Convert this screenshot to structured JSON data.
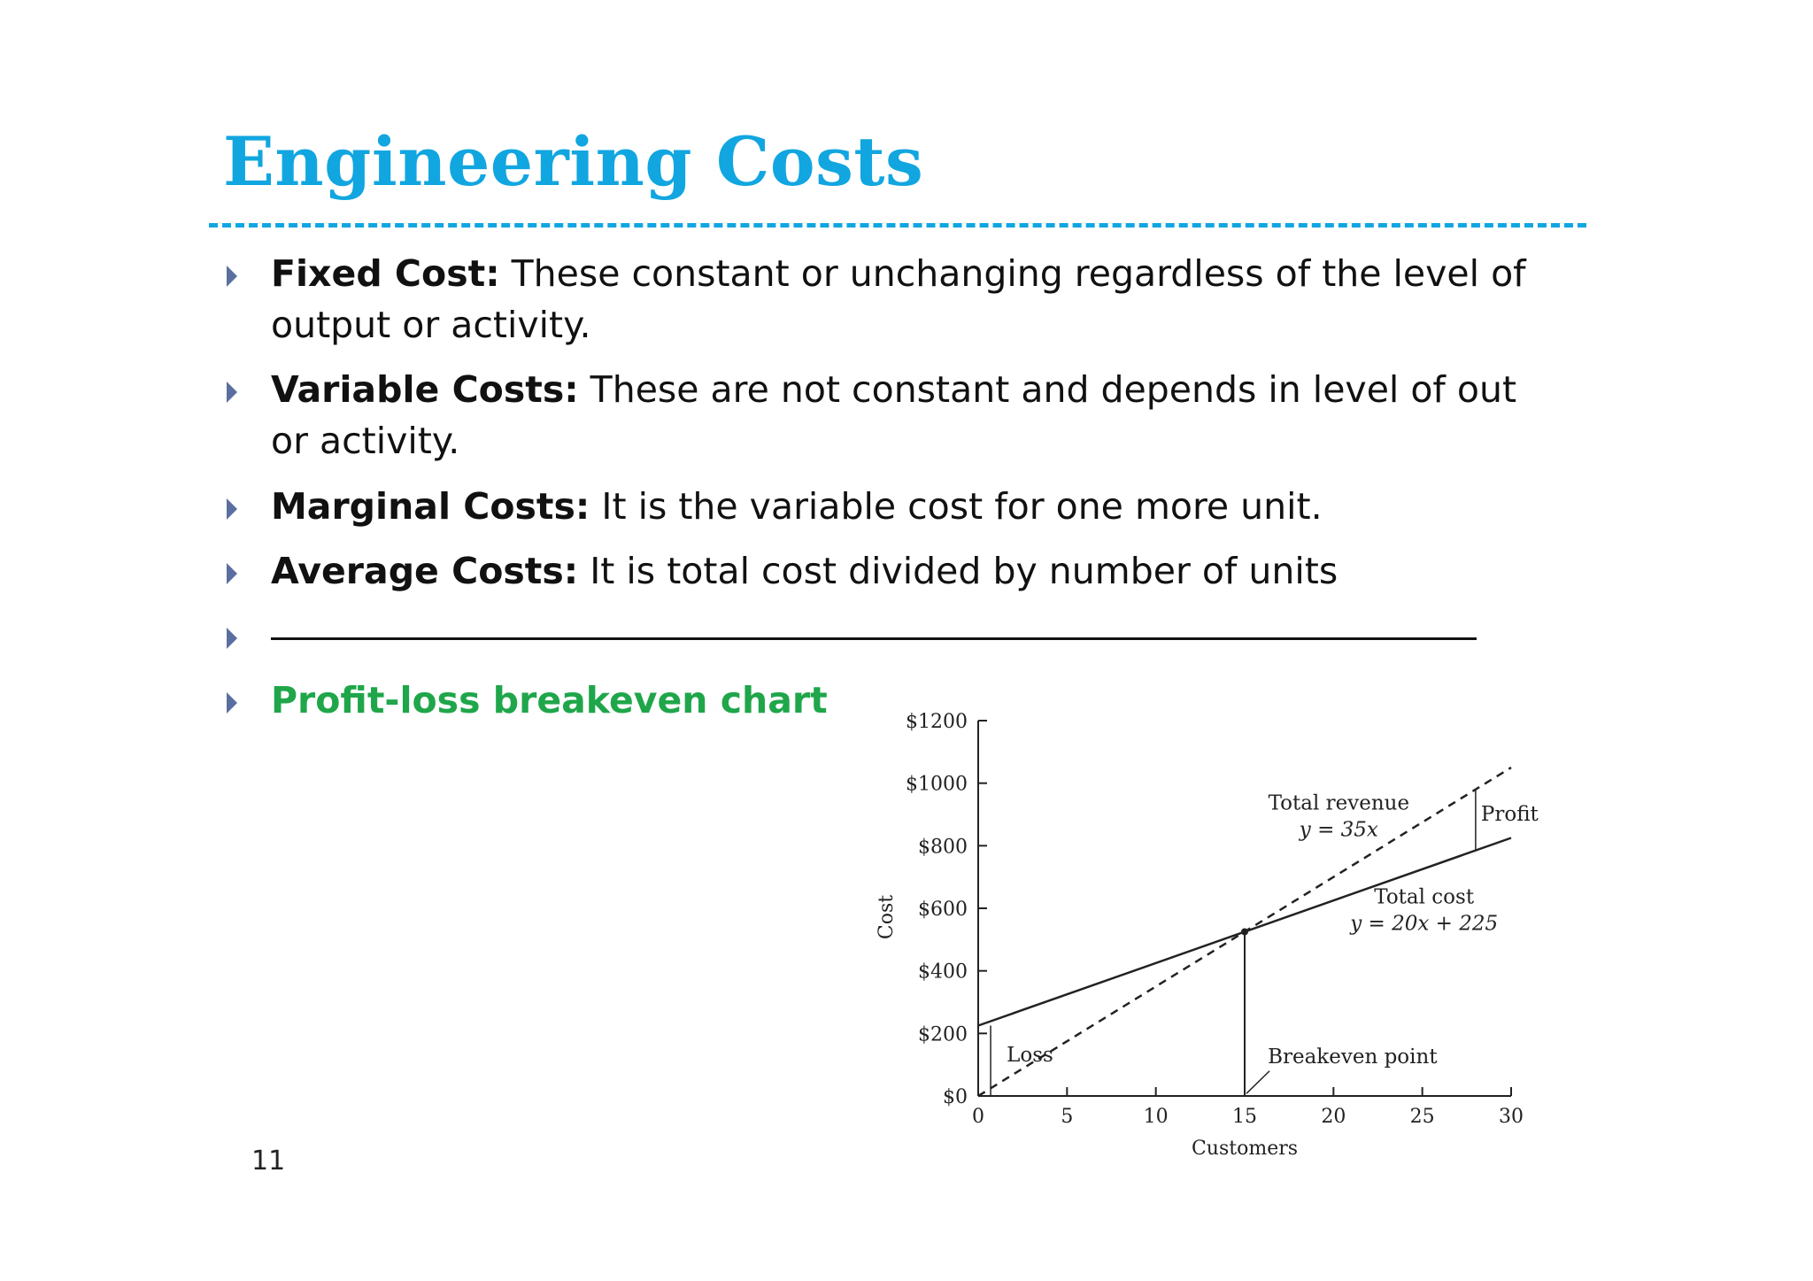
{
  "slide": {
    "title": "Engineering Costs",
    "page_number": "11"
  },
  "bullets": [
    {
      "term": "Fixed Cost:",
      "text": "  These constant or unchanging regardless of the level of output or activity."
    },
    {
      "term": "Variable Costs:",
      "text": " These are not constant and depends in level of out or activity."
    },
    {
      "term": "Marginal Costs:",
      "text": " It is the variable cost for one more unit."
    },
    {
      "term": "Average Costs:",
      "text": " It is total cost divided by number of units"
    },
    {
      "term": "",
      "text": ""
    },
    {
      "term": "Profit-loss breakeven chart",
      "text": ""
    }
  ],
  "chart_data": {
    "type": "line",
    "xlabel": "Customers",
    "ylabel": "Cost",
    "xlim": [
      0,
      30
    ],
    "ylim": [
      0,
      1200
    ],
    "x_ticks": [
      "0",
      "5",
      "10",
      "15",
      "20",
      "25",
      "30"
    ],
    "y_ticks": [
      "$0",
      "$200",
      "$400",
      "$600",
      "$800",
      "$1000",
      "$1200"
    ],
    "series": [
      {
        "name": "Total revenue",
        "equation": "y = 35x",
        "style": "dashed",
        "x": [
          0,
          30
        ],
        "y": [
          0,
          1050
        ]
      },
      {
        "name": "Total cost",
        "equation": "y = 20x + 225",
        "style": "solid",
        "x": [
          0,
          30
        ],
        "y": [
          225,
          825
        ]
      }
    ],
    "annotations": [
      {
        "text": "Breakeven point",
        "x": 15,
        "y": 525
      },
      {
        "text": "Loss",
        "x": 0,
        "y": [
          0,
          225
        ]
      },
      {
        "text": "Profit",
        "x": 28,
        "y": [
          785,
          980
        ]
      }
    ]
  }
}
